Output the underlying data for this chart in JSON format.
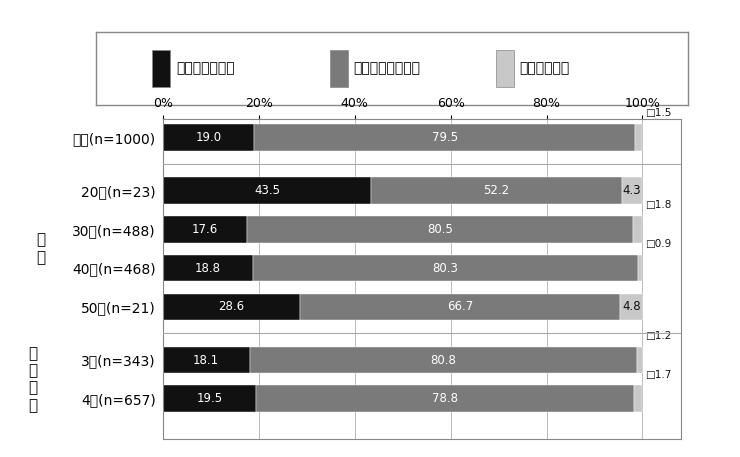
{
  "categories": [
    "全体(n=1000)",
    "20代(n=23)",
    "30代(n=488)",
    "40代(n=468)",
    "50代(n=21)",
    "3人(n=343)",
    "4人(n=657)"
  ],
  "values": [
    [
      19.0,
      79.5,
      1.5
    ],
    [
      43.5,
      52.2,
      4.3
    ],
    [
      17.6,
      80.5,
      1.8
    ],
    [
      18.8,
      80.3,
      0.9
    ],
    [
      28.6,
      66.7,
      4.8
    ],
    [
      18.1,
      80.8,
      1.2
    ],
    [
      19.5,
      78.8,
      1.7
    ]
  ],
  "colors": [
    "#111111",
    "#7a7a7a",
    "#c8c8c8"
  ],
  "legend_labels": [
    "強化すると思う",
    "平年並みだと思う",
    "減らすと思う"
  ],
  "legend_markers": [
    "■",
    "■",
    "□"
  ],
  "bar_height": 0.55,
  "xticks": [
    0,
    20,
    40,
    60,
    80,
    100
  ],
  "xtick_labels": [
    "0%",
    "20%",
    "40%",
    "60%",
    "80%",
    "100%"
  ],
  "white_text": "#ffffff",
  "dark_text": "#111111",
  "figure_bgcolor": "#ffffff",
  "axes_bgcolor": "#ffffff",
  "grid_color": "#bbbbbb",
  "border_color": "#888888",
  "group_sep_color": "#aaaaaa",
  "nendai_label": "年\n代",
  "kazoku_label": "家\n族\n人\n数",
  "label_fontsize": 10,
  "tick_fontsize": 9,
  "bar_fontsize": 8.5,
  "legend_fontsize": 10
}
